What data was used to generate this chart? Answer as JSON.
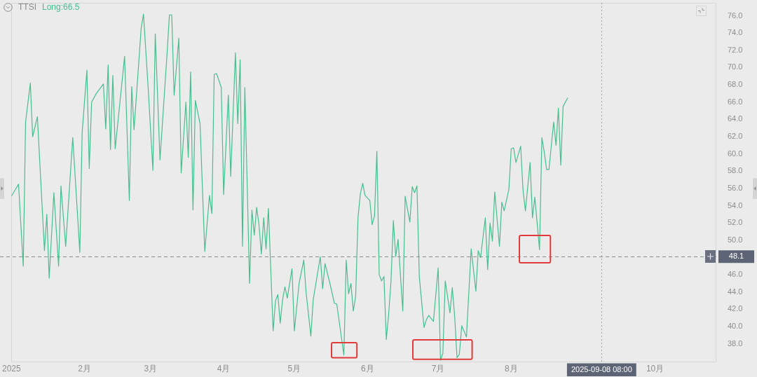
{
  "chart_data": {
    "type": "line",
    "title": "TTSI",
    "marker": "none",
    "line_style": "solid",
    "xlim": [
      "2025-01-01",
      "2025-10-27"
    ],
    "xticks": [
      {
        "value": "2025-01-01",
        "label": "2025"
      },
      {
        "value": "2025-02-01",
        "label": "2月"
      },
      {
        "value": "2025-03-01",
        "label": "3月"
      },
      {
        "value": "2025-04-01",
        "label": "4月"
      },
      {
        "value": "2025-05-01",
        "label": "5月"
      },
      {
        "value": "2025-06-01",
        "label": "6月"
      },
      {
        "value": "2025-07-01",
        "label": "7月"
      },
      {
        "value": "2025-08-01",
        "label": "8月"
      },
      {
        "value": "2025-10-01",
        "label": "10月"
      }
    ],
    "ylim": [
      35.9,
      77.5
    ],
    "yticks": [
      {
        "value": 38,
        "label": "38.0"
      },
      {
        "value": 40,
        "label": "40.0"
      },
      {
        "value": 42,
        "label": "42.0"
      },
      {
        "value": 44,
        "label": "44.0"
      },
      {
        "value": 46,
        "label": "46.0"
      },
      {
        "value": 50,
        "label": "50.0"
      },
      {
        "value": 52,
        "label": "52.0"
      },
      {
        "value": 54,
        "label": "54.0"
      },
      {
        "value": 56,
        "label": "56.0"
      },
      {
        "value": 58,
        "label": "58.0"
      },
      {
        "value": 60,
        "label": "60.0"
      },
      {
        "value": 62,
        "label": "62.0"
      },
      {
        "value": 64,
        "label": "64.0"
      },
      {
        "value": 66,
        "label": "66.0"
      },
      {
        "value": 68,
        "label": "68.0"
      },
      {
        "value": 70,
        "label": "70.0"
      },
      {
        "value": 72,
        "label": "72.0"
      },
      {
        "value": 74,
        "label": "74.0"
      },
      {
        "value": 76,
        "label": "76.0"
      }
    ],
    "ref_lines": [
      {
        "axis": "y",
        "value": 48.1,
        "label": "48.1",
        "color": "#8c8c8c",
        "line_style": "dashed"
      },
      {
        "axis": "x",
        "value": "2025-09-08T08:00",
        "label": "2025-09-08 08:00",
        "color": "#a6a6a6",
        "line_style": "dotted"
      }
    ],
    "series": [
      {
        "name": "Long:66.5",
        "color": "#46be90",
        "x": [
          "2025-01-01",
          "2025-01-04",
          "2025-01-06",
          "2025-01-07",
          "2025-01-09",
          "2025-01-10",
          "2025-01-12",
          "2025-01-15",
          "2025-01-16",
          "2025-01-17",
          "2025-01-19",
          "2025-01-21",
          "2025-01-22",
          "2025-01-24",
          "2025-01-27",
          "2025-01-30",
          "2025-01-31",
          "2025-02-02",
          "2025-02-03",
          "2025-02-04",
          "2025-02-06",
          "2025-02-09",
          "2025-02-10",
          "2025-02-11",
          "2025-02-12",
          "2025-02-13",
          "2025-02-14",
          "2025-02-18",
          "2025-02-20",
          "2025-02-21",
          "2025-02-22",
          "2025-02-25",
          "2025-02-26",
          "2025-02-28",
          "2025-03-02",
          "2025-03-03",
          "2025-03-05",
          "2025-03-08",
          "2025-03-09",
          "2025-03-10",
          "2025-03-11",
          "2025-03-13",
          "2025-03-14",
          "2025-03-16",
          "2025-03-17",
          "2025-03-18",
          "2025-03-19",
          "2025-03-20",
          "2025-03-22",
          "2025-03-24",
          "2025-03-26",
          "2025-03-27",
          "2025-03-28",
          "2025-03-29",
          "2025-03-31",
          "2025-04-01",
          "2025-04-03",
          "2025-04-04",
          "2025-04-06",
          "2025-04-07",
          "2025-04-08",
          "2025-04-09",
          "2025-04-10",
          "2025-04-12",
          "2025-04-13",
          "2025-04-14",
          "2025-04-15",
          "2025-04-16",
          "2025-04-17",
          "2025-04-18",
          "2025-04-19",
          "2025-04-20",
          "2025-04-22",
          "2025-04-23",
          "2025-04-24",
          "2025-04-25",
          "2025-04-26",
          "2025-04-27",
          "2025-04-28",
          "2025-04-30",
          "2025-05-01",
          "2025-05-03",
          "2025-05-05",
          "2025-05-06",
          "2025-05-08",
          "2025-05-09",
          "2025-05-12",
          "2025-05-13",
          "2025-05-14",
          "2025-05-16",
          "2025-05-18",
          "2025-05-19",
          "2025-05-22",
          "2025-05-23",
          "2025-05-24",
          "2025-05-25",
          "2025-05-26",
          "2025-05-27",
          "2025-05-28",
          "2025-05-29",
          "2025-05-30",
          "2025-05-31",
          "2025-06-02",
          "2025-06-03",
          "2025-06-04",
          "2025-06-05",
          "2025-06-06",
          "2025-06-07",
          "2025-06-08",
          "2025-06-09",
          "2025-06-10",
          "2025-06-11",
          "2025-06-12",
          "2025-06-13",
          "2025-06-14",
          "2025-06-16",
          "2025-06-17",
          "2025-06-19",
          "2025-06-20",
          "2025-06-21",
          "2025-06-22",
          "2025-06-23",
          "2025-06-25",
          "2025-06-26",
          "2025-06-27",
          "2025-06-29",
          "2025-07-01",
          "2025-07-02",
          "2025-07-03",
          "2025-07-04",
          "2025-07-06",
          "2025-07-07",
          "2025-07-08",
          "2025-07-09",
          "2025-07-10",
          "2025-07-11",
          "2025-07-13",
          "2025-07-15",
          "2025-07-17",
          "2025-07-18",
          "2025-07-19",
          "2025-07-21",
          "2025-07-22",
          "2025-07-23",
          "2025-07-24",
          "2025-07-25",
          "2025-07-27",
          "2025-07-28",
          "2025-07-29",
          "2025-07-31",
          "2025-08-01",
          "2025-08-02",
          "2025-08-03",
          "2025-08-05",
          "2025-08-06",
          "2025-08-07",
          "2025-08-09",
          "2025-08-10",
          "2025-08-11",
          "2025-08-13",
          "2025-08-14",
          "2025-08-15",
          "2025-08-16",
          "2025-08-17",
          "2025-08-19",
          "2025-08-20",
          "2025-08-21",
          "2025-08-22",
          "2025-08-23",
          "2025-08-25"
        ],
        "values": [
          55.1,
          56.5,
          47.0,
          63.7,
          68.2,
          62.0,
          64.3,
          48.8,
          53.0,
          45.6,
          55.5,
          47.0,
          56.3,
          49.3,
          61.9,
          48.6,
          62.5,
          69.7,
          58.3,
          66.0,
          67.0,
          68.1,
          62.9,
          70.3,
          60.5,
          69.1,
          60.6,
          71.3,
          54.6,
          67.8,
          62.8,
          74.5,
          76.2,
          67.6,
          58.1,
          73.9,
          59.3,
          71.6,
          76.1,
          76.1,
          66.8,
          73.4,
          57.8,
          66.0,
          59.6,
          69.5,
          53.5,
          66.2,
          63.5,
          48.7,
          55.2,
          53.1,
          69.2,
          69.3,
          67.7,
          55.3,
          66.8,
          57.4,
          71.7,
          63.5,
          70.9,
          49.3,
          67.7,
          45.0,
          53.5,
          50.6,
          53.8,
          51.8,
          48.4,
          52.6,
          49.0,
          53.7,
          39.5,
          43.0,
          43.7,
          40.4,
          43.1,
          44.6,
          43.3,
          46.7,
          39.5,
          45.0,
          47.7,
          43.9,
          38.9,
          43.1,
          48.1,
          44.4,
          47.3,
          45.1,
          42.7,
          42.6,
          36.7,
          47.7,
          43.8,
          45.0,
          41.8,
          43.5,
          52.6,
          55.4,
          56.6,
          55.2,
          54.6,
          51.8,
          52.8,
          60.3,
          46.0,
          45.3,
          45.8,
          38.5,
          41.4,
          45.3,
          52.3,
          48.1,
          50.1,
          41.8,
          55.1,
          52.1,
          56.2,
          55.5,
          56.3,
          45.8,
          39.9,
          40.8,
          41.3,
          40.6,
          46.8,
          36.1,
          36.9,
          45.3,
          41.6,
          44.5,
          41.2,
          36.4,
          36.8,
          40.1,
          38.8,
          49.0,
          44.1,
          48.8,
          48.0,
          52.6,
          46.6,
          52.0,
          49.9,
          55.6,
          49.3,
          54.4,
          53.4,
          55.9,
          60.6,
          60.7,
          59.0,
          60.9,
          55.8,
          53.4,
          59.0,
          52.6,
          55.0,
          48.9,
          61.9,
          60.2,
          58.2,
          58.2,
          63.7,
          61.0,
          65.3,
          58.7,
          65.5,
          66.5
        ]
      }
    ]
  }
}
